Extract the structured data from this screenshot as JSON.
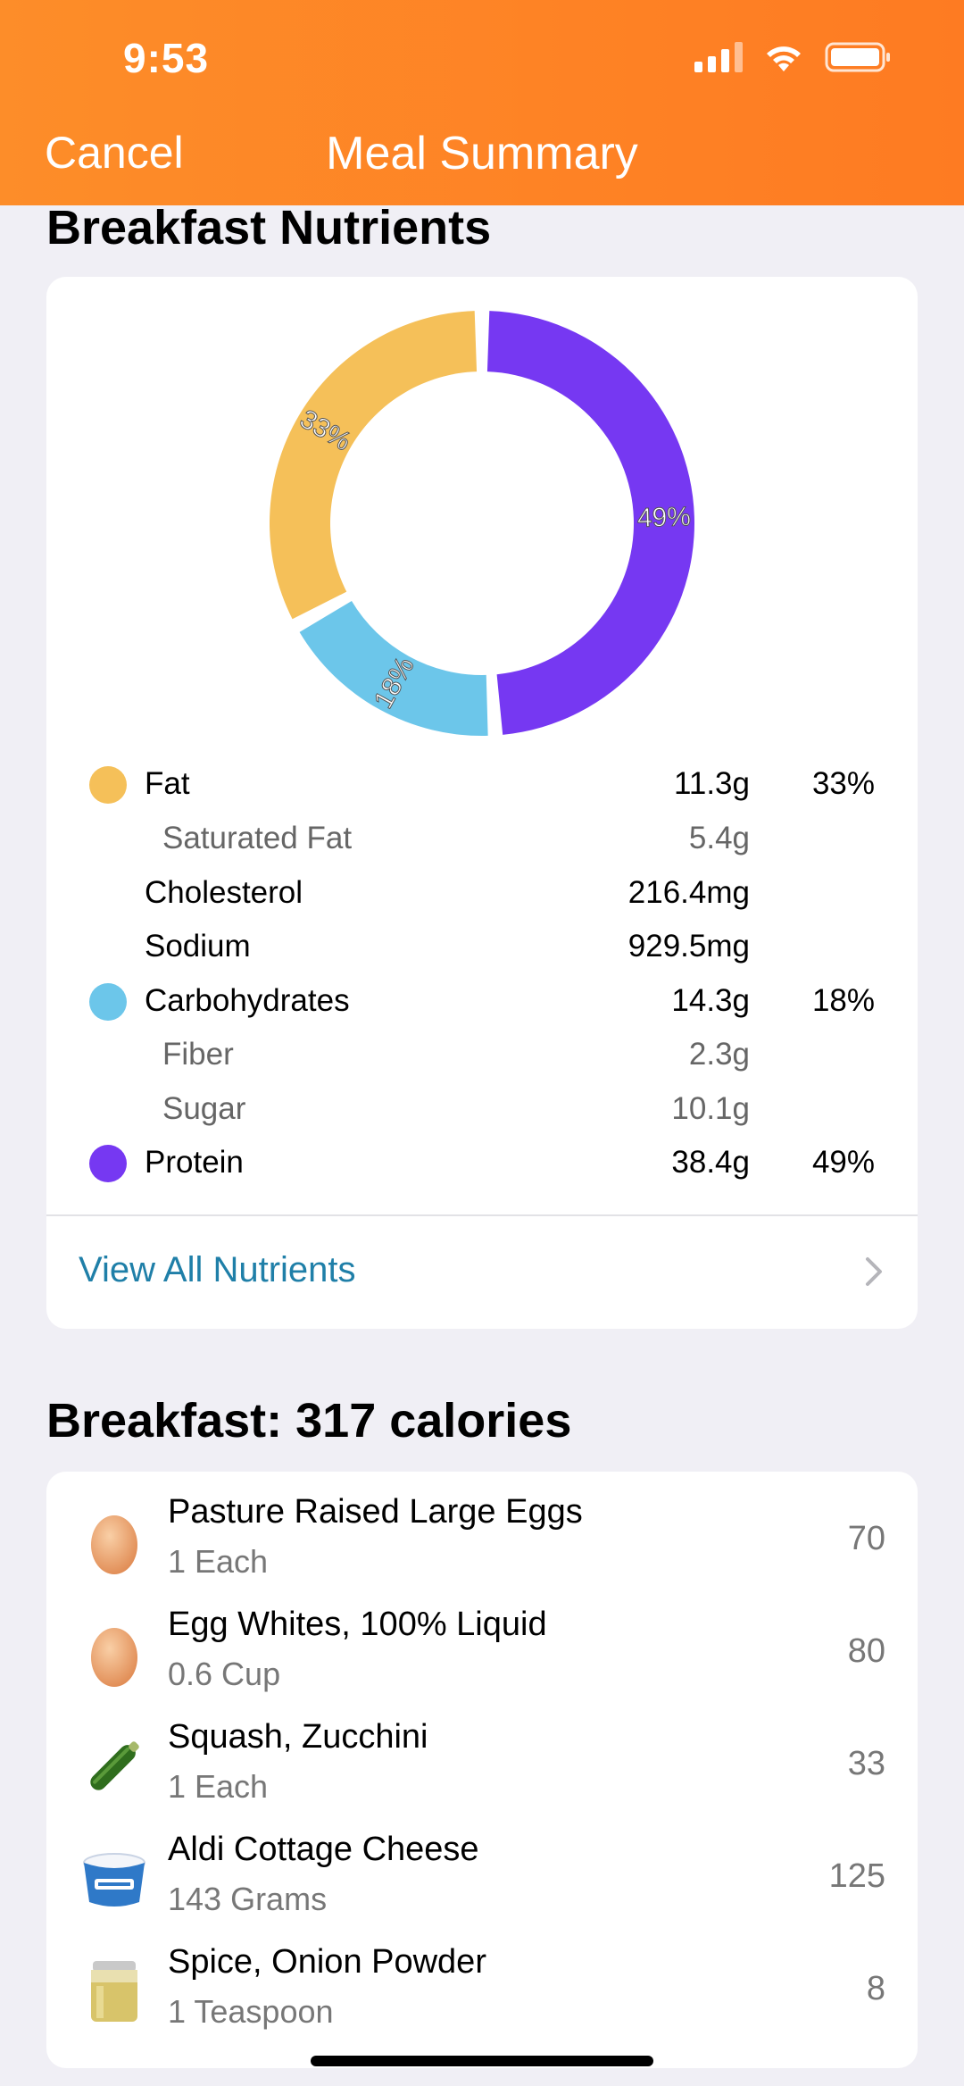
{
  "status_bar": {
    "time": "9:53"
  },
  "nav": {
    "cancel_label": "Cancel",
    "title": "Meal Summary"
  },
  "nutrients_section": {
    "title": "Breakfast Nutrients",
    "chart_data": {
      "type": "pie",
      "categories": [
        "Protein",
        "Carbohydrates",
        "Fat"
      ],
      "values": [
        49,
        18,
        33
      ],
      "labels": [
        "49%",
        "18%",
        "33%"
      ],
      "colors": [
        "#7638f2",
        "#6cc6ea",
        "#f5c059"
      ]
    },
    "rows": [
      {
        "label": "Fat",
        "amount": "11.3g",
        "percent": "33%",
        "color": "#f5c059",
        "sub": false
      },
      {
        "label": "Saturated Fat",
        "amount": "5.4g",
        "percent": "",
        "color": "",
        "sub": true
      },
      {
        "label": "Cholesterol",
        "amount": "216.4mg",
        "percent": "",
        "color": "",
        "sub": false
      },
      {
        "label": "Sodium",
        "amount": "929.5mg",
        "percent": "",
        "color": "",
        "sub": false
      },
      {
        "label": "Carbohydrates",
        "amount": "14.3g",
        "percent": "18%",
        "color": "#6cc6ea",
        "sub": false
      },
      {
        "label": "Fiber",
        "amount": "2.3g",
        "percent": "",
        "color": "",
        "sub": true
      },
      {
        "label": "Sugar",
        "amount": "10.1g",
        "percent": "",
        "color": "",
        "sub": true
      },
      {
        "label": "Protein",
        "amount": "38.4g",
        "percent": "49%",
        "color": "#7638f2",
        "sub": false
      }
    ],
    "view_all_label": "View All Nutrients"
  },
  "meal_section": {
    "title": "Breakfast: 317 calories",
    "items": [
      {
        "name": "Pasture Raised Large Eggs",
        "qty": "1 Each",
        "calories": "70",
        "icon": "egg-icon"
      },
      {
        "name": "Egg Whites, 100% Liquid",
        "qty": "0.6 Cup",
        "calories": "80",
        "icon": "egg-icon"
      },
      {
        "name": "Squash, Zucchini",
        "qty": "1 Each",
        "calories": "33",
        "icon": "zucchini-icon"
      },
      {
        "name": "Aldi Cottage Cheese",
        "qty": "143 Grams",
        "calories": "125",
        "icon": "cottage-cheese-icon"
      },
      {
        "name": "Spice, Onion Powder",
        "qty": "1 Teaspoon",
        "calories": "8",
        "icon": "spice-jar-icon"
      }
    ]
  }
}
